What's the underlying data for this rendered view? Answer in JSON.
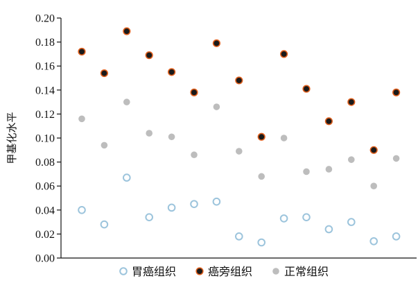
{
  "chart_data": {
    "type": "scatter",
    "ylabel": "甲基化水平",
    "xlabel": "",
    "ylim": [
      0,
      0.2
    ],
    "yticks": [
      "0.00",
      "0.02",
      "0.04",
      "0.06",
      "0.08",
      "0.10",
      "0.12",
      "0.14",
      "0.16",
      "0.18",
      "0.20"
    ],
    "x": [
      1,
      2,
      3,
      4,
      5,
      6,
      7,
      8,
      9,
      10,
      11,
      12,
      13,
      14,
      15
    ],
    "grid": false,
    "legend_position": "bottom",
    "series": [
      {
        "name": "胃癌组织",
        "marker": "hollow-circle",
        "color": "#9cc4dc",
        "values": [
          0.04,
          0.028,
          0.067,
          0.034,
          0.042,
          0.045,
          0.047,
          0.018,
          0.013,
          0.033,
          0.034,
          0.024,
          0.03,
          0.014,
          0.018
        ]
      },
      {
        "name": "癌旁组织",
        "marker": "filled-circle-dark",
        "color": "#1a1a1a",
        "edge_color": "#e0601e",
        "values": [
          0.172,
          0.154,
          0.189,
          0.169,
          0.155,
          0.138,
          0.179,
          0.148,
          0.101,
          0.17,
          0.141,
          0.114,
          0.13,
          0.09,
          0.138
        ]
      },
      {
        "name": "正常组织",
        "marker": "filled-circle-gray",
        "color": "#bdbdbd",
        "values": [
          0.116,
          0.094,
          0.13,
          0.104,
          0.101,
          0.086,
          0.126,
          0.089,
          0.068,
          0.1,
          0.072,
          0.074,
          0.082,
          0.06,
          0.083
        ]
      }
    ]
  }
}
